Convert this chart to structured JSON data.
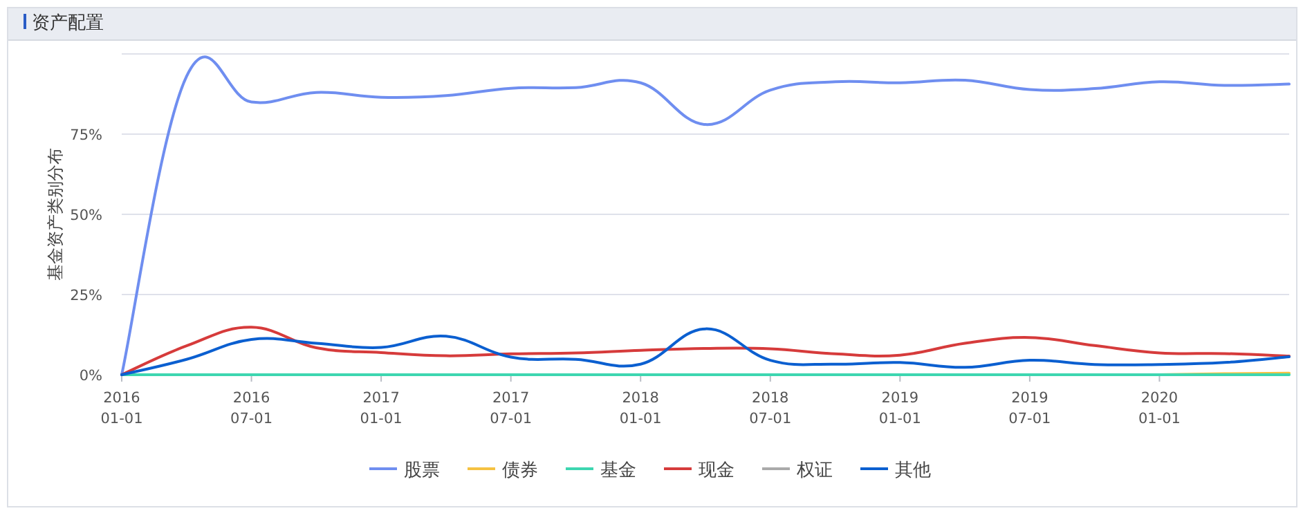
{
  "chart_data": {
    "type": "line",
    "title": "资产配置",
    "ylabel": "基金资产类别分布",
    "categories": [
      "2016\n01-01",
      null,
      "2016\n07-01",
      null,
      "2017\n01-01",
      null,
      "2017\n07-01",
      null,
      "2018\n01-01",
      null,
      "2018\n07-01",
      null,
      "2019\n01-01",
      null,
      "2019\n07-01",
      null,
      "2020\n01-01",
      null,
      null
    ],
    "ylim": [
      0,
      100
    ],
    "yticks": [
      {
        "value": 0,
        "label": "0%"
      },
      {
        "value": 25,
        "label": "25%"
      },
      {
        "value": 50,
        "label": "50%"
      },
      {
        "value": 75,
        "label": "75%"
      },
      {
        "value": 100,
        "label": null
      }
    ],
    "grid": "y",
    "legend": "bottom",
    "marker": "none",
    "line_style": "solid",
    "series": [
      {
        "name": "股票",
        "color": "#6f8ef0",
        "values": [
          0,
          93,
          85,
          88,
          86.5,
          87,
          89.3,
          89.5,
          91,
          78,
          88.7,
          91.3,
          91,
          91.8,
          88.9,
          89.2,
          91.3,
          90.2,
          90.6
        ]
      },
      {
        "name": "债券",
        "color": "#f5c242",
        "values": [
          null,
          null,
          null,
          null,
          null,
          null,
          null,
          null,
          null,
          null,
          null,
          null,
          null,
          null,
          null,
          null,
          0,
          0.3,
          0.5
        ]
      },
      {
        "name": "基金",
        "color": "#3dd6b0",
        "values": [
          0,
          0,
          0,
          0,
          0,
          0,
          0,
          0,
          0,
          0,
          0,
          0,
          0,
          0,
          0,
          0,
          0,
          0,
          0
        ]
      },
      {
        "name": "现金",
        "color": "#d63b3b",
        "values": [
          0,
          9,
          14.8,
          8.4,
          6.9,
          5.9,
          6.5,
          6.8,
          7.6,
          8.2,
          8.1,
          6.5,
          6.1,
          9.8,
          11.6,
          9.1,
          6.8,
          6.6,
          5.8
        ]
      },
      {
        "name": "权证",
        "color": "#aaaaaa",
        "values": [
          null,
          null,
          null,
          null,
          null,
          null,
          null,
          null,
          null,
          null,
          null,
          null,
          null,
          null,
          null,
          null,
          null,
          null,
          null
        ]
      },
      {
        "name": "其他",
        "color": "#0b5fd0",
        "values": [
          0,
          4.8,
          11,
          9.8,
          8.5,
          12,
          5.5,
          4.8,
          3.3,
          14.3,
          4.5,
          3.3,
          3.8,
          2.3,
          4.5,
          3.2,
          3.2,
          3.8,
          5.6
        ]
      }
    ]
  }
}
